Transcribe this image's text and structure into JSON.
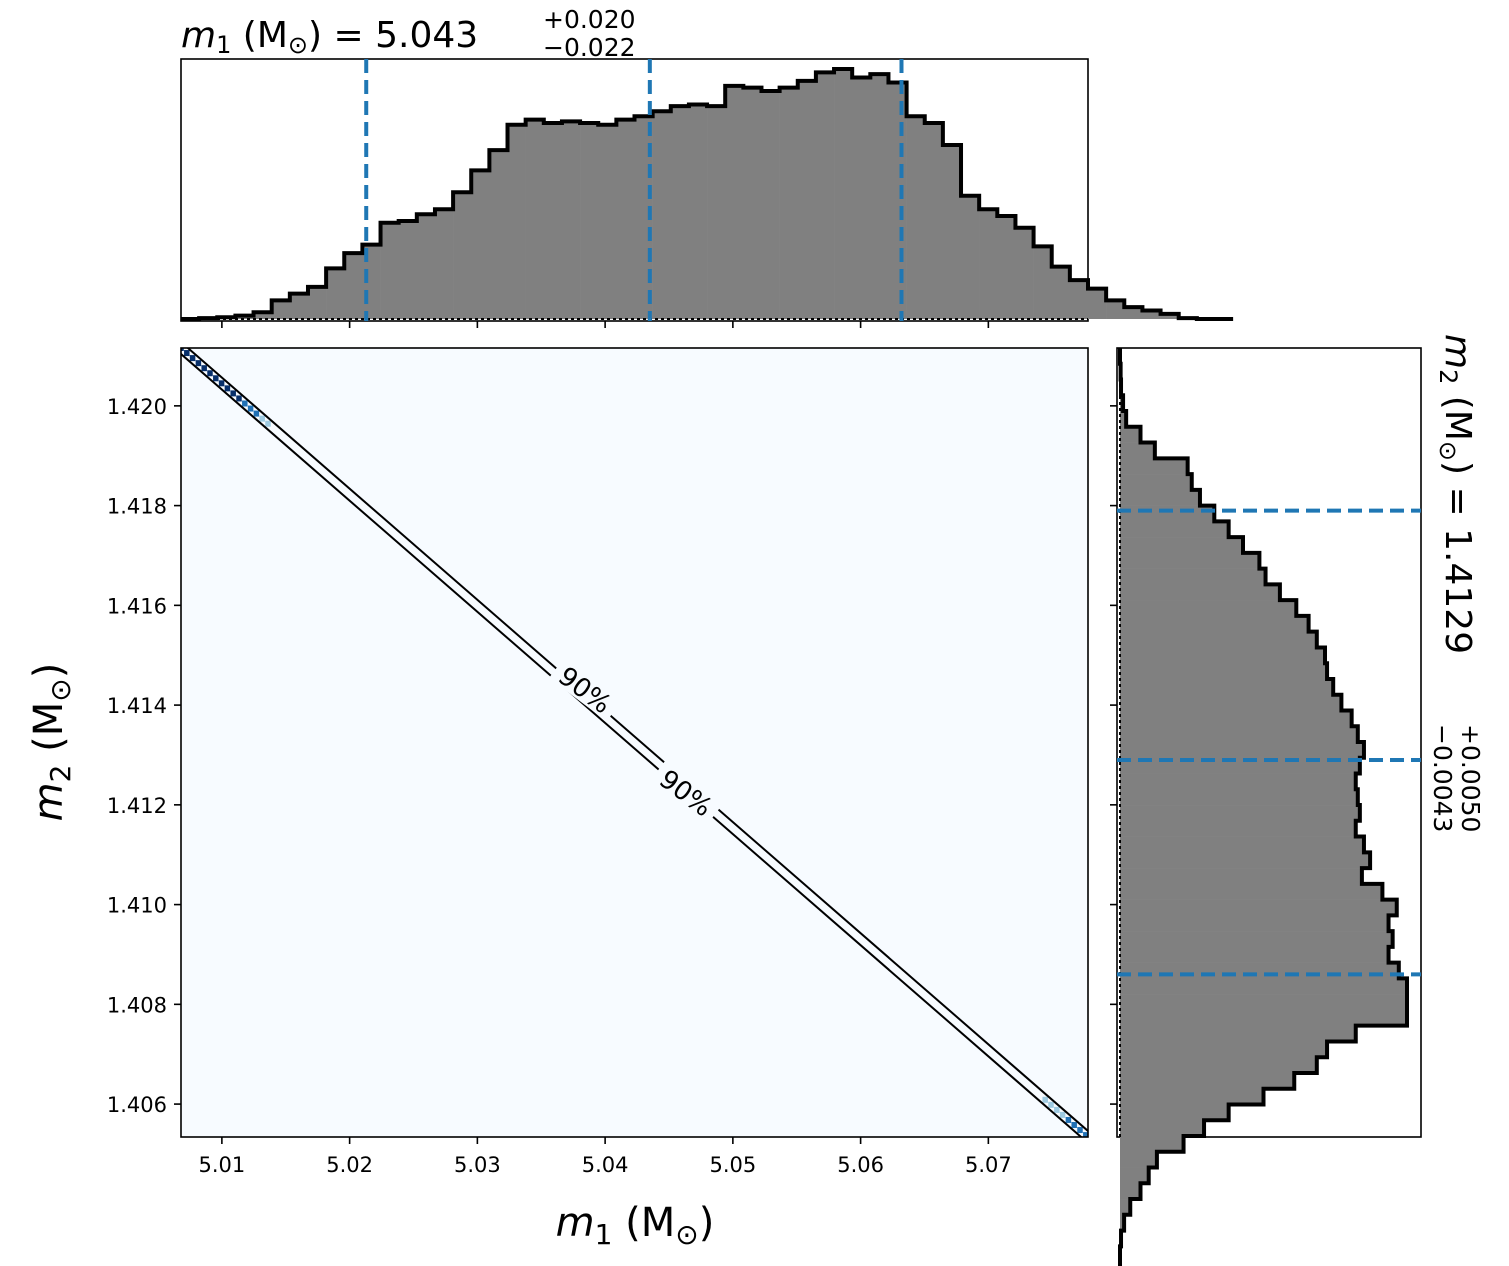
{
  "chart_data": {
    "type": "corner",
    "colors": {
      "hist_fill": "#808080",
      "hist_edge": "#000000",
      "quantile_line": "#1f77b4",
      "density_background": "#f7fbff",
      "density_dark": "#08306b",
      "density_mid": "#2171b5",
      "density_light": "#9ecae1",
      "contour": "#000000"
    },
    "m1_marginal": {
      "title_symbol": "m",
      "title_subscript": "1",
      "title_unit": " (M",
      "title_unit_sub": "⊙",
      "title_unit_close": ")",
      "title_eq": " = 5.043",
      "title_plus": "+0.020",
      "title_minus": "−0.022",
      "median": 5.0435,
      "lower": 5.0213,
      "upper": 5.0632,
      "xlim": [
        5.0068,
        5.0778
      ],
      "bin_width": 0.00142,
      "counts": [
        0,
        0.5,
        1,
        2,
        4,
        11,
        15,
        19,
        30,
        39,
        44,
        57,
        58,
        62,
        65,
        75,
        88,
        100,
        115,
        118,
        116,
        117,
        116,
        115,
        118,
        120,
        123,
        126,
        127,
        126,
        138,
        137,
        135,
        137,
        141,
        146,
        148,
        143,
        145,
        140,
        120,
        116,
        103,
        73,
        65,
        61,
        54,
        43,
        31,
        23,
        18,
        11,
        7,
        5,
        3,
        0.5,
        0,
        0
      ]
    },
    "m2_marginal": {
      "title_symbol": "m",
      "title_subscript": "2",
      "title_unit": " (M",
      "title_unit_sub": "⊙",
      "title_unit_close": ")",
      "title_eq": " = 1.4129",
      "title_plus": "+0.0050",
      "title_minus": "−0.0043",
      "median": 1.4129,
      "lower": 1.4086,
      "upper": 1.4179,
      "ylim": [
        1.40534,
        1.42116
      ],
      "bin_width": 0.000316,
      "counts_from_top": [
        0,
        0.3,
        0.5,
        1.5,
        3,
        10,
        17,
        33,
        35,
        39,
        46,
        53,
        60,
        68,
        71,
        78,
        86,
        92,
        96,
        100,
        101,
        104,
        108,
        113,
        116,
        119,
        117,
        115,
        116,
        117,
        115,
        119,
        122,
        118,
        128,
        135,
        131,
        133,
        131,
        136,
        140,
        140,
        140,
        115,
        101,
        96,
        85,
        70,
        53,
        41,
        31,
        18,
        14,
        10,
        5,
        2,
        0.5,
        0,
        0
      ]
    },
    "joint": {
      "x_label_symbol": "m",
      "x_label_sub": "1",
      "x_label_unit": " (M",
      "x_label_unit_sub": "⊙",
      "x_label_unit_close": ")",
      "y_label_symbol": "m",
      "y_label_sub": "2",
      "y_label_unit": " (M",
      "y_label_unit_sub": "⊙",
      "y_label_unit_close": ")",
      "x_ticks": [
        "5.01",
        "5.02",
        "5.03",
        "5.04",
        "5.05",
        "5.06",
        "5.07"
      ],
      "x_tick_values": [
        5.01,
        5.02,
        5.03,
        5.04,
        5.05,
        5.06,
        5.07
      ],
      "y_ticks": [
        "1.406",
        "1.408",
        "1.410",
        "1.412",
        "1.414",
        "1.416",
        "1.418",
        "1.420"
      ],
      "y_tick_values": [
        1.406,
        1.408,
        1.41,
        1.412,
        1.414,
        1.416,
        1.418,
        1.42
      ],
      "xlim": [
        5.0068,
        5.0778
      ],
      "ylim": [
        1.40534,
        1.42116
      ],
      "contour_label_1": "90%",
      "contour_label_2": "90%"
    }
  }
}
